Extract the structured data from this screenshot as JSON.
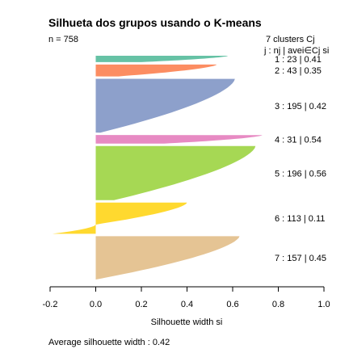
{
  "chart_data": {
    "type": "silhouette",
    "title": "Silhueta dos grupos usando o K-means",
    "n_label": "n = 758",
    "clusters_header": "7  clusters  Cj",
    "row_header": "j : nj | avei∈Cj si",
    "xlabel": "Silhouette width si",
    "footer": "Average silhouette width :  0.42",
    "xlim": [
      -0.2,
      1.0
    ],
    "xticks": [
      "-0.2",
      "0.0",
      "0.2",
      "0.4",
      "0.6",
      "0.8",
      "1.0"
    ],
    "xtick_values": [
      -0.2,
      0.0,
      0.2,
      0.4,
      0.6,
      0.8,
      1.0
    ],
    "clusters": [
      {
        "id": 1,
        "n": 23,
        "avg": 0.41,
        "label": "1 :  23  |  0.41",
        "max": 0.58,
        "min": 0.2,
        "neg_min": 0,
        "neg_frac": 0,
        "color": "#66c2a5"
      },
      {
        "id": 2,
        "n": 43,
        "avg": 0.35,
        "label": "2 :  43  |  0.35",
        "max": 0.53,
        "min": 0.1,
        "neg_min": 0,
        "neg_frac": 0,
        "color": "#fc8d62"
      },
      {
        "id": 3,
        "n": 195,
        "avg": 0.42,
        "label": "3 :  195  |  0.42",
        "max": 0.61,
        "min": 0.02,
        "neg_min": 0,
        "neg_frac": 0,
        "color": "#8da0cb"
      },
      {
        "id": 4,
        "n": 31,
        "avg": 0.54,
        "label": "4 :  31  |  0.54",
        "max": 0.73,
        "min": 0.3,
        "neg_min": 0,
        "neg_frac": 0,
        "color": "#e78ac3"
      },
      {
        "id": 5,
        "n": 196,
        "avg": 0.56,
        "label": "5 :  196  |  0.56",
        "max": 0.7,
        "min": 0.08,
        "neg_min": 0,
        "neg_frac": 0,
        "color": "#a6d854"
      },
      {
        "id": 6,
        "n": 113,
        "avg": 0.11,
        "label": "6 :  113  |  0.11",
        "max": 0.4,
        "min": 0.0,
        "neg_min": -0.19,
        "neg_frac": 0.3,
        "color": "#ffd92f"
      },
      {
        "id": 7,
        "n": 157,
        "avg": 0.45,
        "label": "7 :  157  |  0.45",
        "max": 0.63,
        "min": 0.0,
        "neg_min": 0,
        "neg_frac": 0,
        "color": "#e5c494"
      }
    ]
  }
}
